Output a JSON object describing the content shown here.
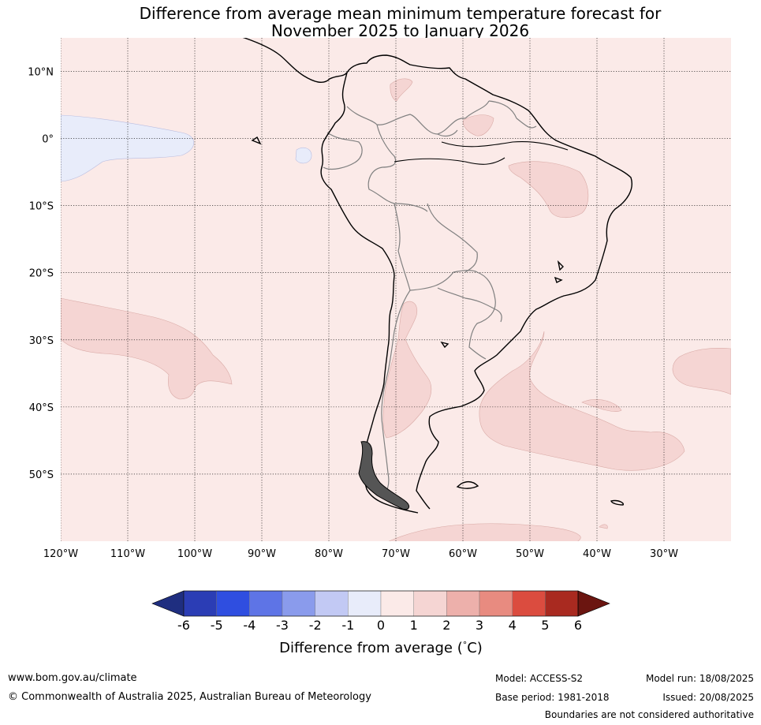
{
  "title": {
    "line1": "Difference from average mean minimum temperature forecast for",
    "line2": "November 2025 to January 2026"
  },
  "map": {
    "lat_labels": [
      "10°N",
      "0°",
      "10°S",
      "20°S",
      "30°S",
      "40°S",
      "50°S"
    ],
    "lon_labels": [
      "120°W",
      "110°W",
      "100°W",
      "90°W",
      "80°W",
      "70°W",
      "60°W",
      "50°W",
      "40°W",
      "30°W"
    ],
    "extent": {
      "lon_min": -120,
      "lon_max": -20,
      "lat_min": -60,
      "lat_max": 15
    },
    "background_class": "0 to 1",
    "background_color": "#fbeae8",
    "anomaly_regions": [
      {
        "name": "Pacific Ocean west of Ecuador",
        "class": "-1 to 0"
      },
      {
        "name": "Galapagos",
        "class": "-1 to 0"
      },
      {
        "name": "Colombia-Venezuela border",
        "class": "1 to 2"
      },
      {
        "name": "Guyana highlands",
        "class": "1 to 2"
      },
      {
        "name": "North-east Brazil",
        "class": "1 to 2"
      },
      {
        "name": "Central Argentina",
        "class": "1 to 2"
      },
      {
        "name": "South-east Pacific",
        "class": "1 to 2"
      },
      {
        "name": "South-west Atlantic",
        "class": "1 to 2"
      },
      {
        "name": "South Atlantic east",
        "class": "1 to 2"
      },
      {
        "name": "Southern Ocean",
        "class": "1 to 2"
      }
    ]
  },
  "colorbar": {
    "ticks": [
      "-6",
      "-5",
      "-4",
      "-3",
      "-2",
      "-1",
      "0",
      "1",
      "2",
      "3",
      "4",
      "5",
      "6"
    ],
    "colors": [
      "#1f2e80",
      "#2b3db5",
      "#2f4ee0",
      "#5e74e6",
      "#8a9bec",
      "#c2c9f4",
      "#e8ecfa",
      "#fbeae8",
      "#f5d5d3",
      "#edb0ab",
      "#e88b80",
      "#db4c3f",
      "#a92a20",
      "#6b1510"
    ],
    "label": "Difference from average (°C)",
    "label_prefix": "Difference from average (",
    "label_degree": "°",
    "label_suffix": "C)"
  },
  "footer": {
    "url": "www.bom.gov.au/climate",
    "copyright": "© Commonwealth of Australia 2025, Australian Bureau of Meteorology",
    "model": "Model: ACCESS-S2",
    "base_period": "Base period: 1981-2018",
    "model_run": "Model run: 18/08/2025",
    "issued": "Issued: 20/08/2025",
    "disclaimer": "Boundaries are not considered authoritative"
  }
}
